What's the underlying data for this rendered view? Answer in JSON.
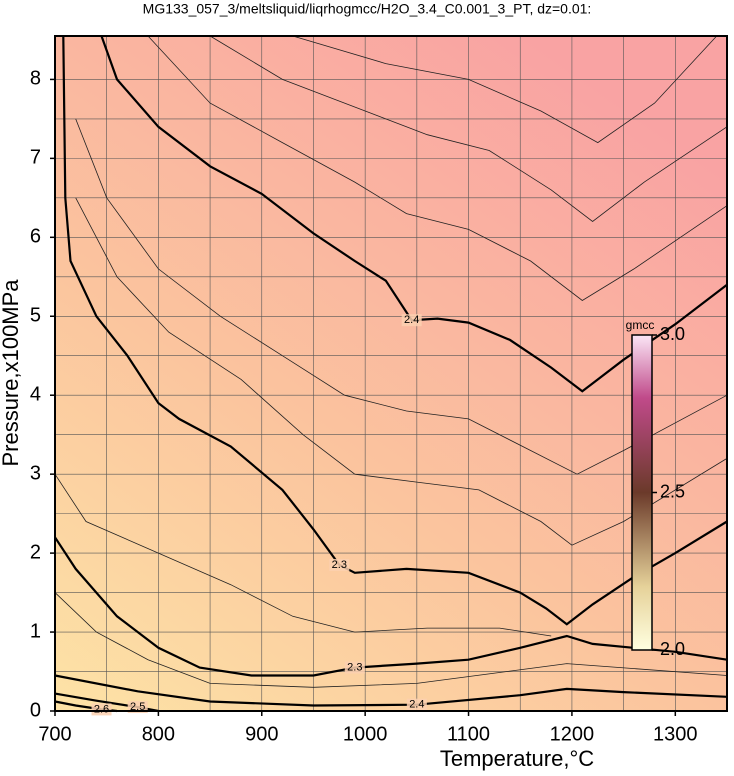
{
  "chart_data": {
    "type": "contour",
    "title": "MG133_057_3/meltsliquid/liqrhogmcc/H2O_3.4_C0.001_3_PT, dz=0.01:",
    "x_label": "Temperature,°C",
    "y_label": "Pressure,x100MPa",
    "xlim": [
      700,
      1350
    ],
    "ylim": [
      0,
      8.55
    ],
    "xticks": [
      700,
      800,
      900,
      1000,
      1100,
      1200,
      1300
    ],
    "yticks": [
      0,
      1,
      2,
      3,
      4,
      5,
      6,
      7,
      8
    ],
    "xgrid": [
      700,
      750,
      800,
      850,
      900,
      950,
      1000,
      1050,
      1100,
      1150,
      1200,
      1250,
      1300,
      1350
    ],
    "ygrid": [
      0,
      0.5,
      1,
      1.5,
      2,
      2.5,
      3,
      3.5,
      4,
      4.5,
      5,
      5.5,
      6,
      6.5,
      7,
      7.5,
      8
    ],
    "grid": true,
    "contours": [
      {
        "level": 2.4,
        "x": [
          745,
          760,
          800,
          850,
          900,
          950,
          990,
          1020,
          1045,
          1070,
          1100,
          1140,
          1180,
          1210,
          1250,
          1300,
          1350
        ],
        "y": [
          8.55,
          8.0,
          7.4,
          6.9,
          6.55,
          6.05,
          5.7,
          5.45,
          4.95,
          4.97,
          4.92,
          4.7,
          4.35,
          4.05,
          4.45,
          4.9,
          5.4
        ]
      },
      {
        "level": 2.3,
        "x": [
          708,
          710,
          715,
          740,
          770,
          800,
          820,
          870,
          920,
          950,
          975,
          990,
          1040,
          1100,
          1150,
          1175,
          1195,
          1220,
          1260,
          1300,
          1350
        ],
        "y": [
          8.55,
          6.5,
          5.7,
          5.0,
          4.5,
          3.9,
          3.7,
          3.35,
          2.8,
          2.3,
          1.85,
          1.75,
          1.8,
          1.75,
          1.5,
          1.3,
          1.1,
          1.35,
          1.7,
          2.0,
          2.4
        ]
      },
      {
        "level": 2.3,
        "x": [
          700,
          720,
          760,
          800,
          840,
          890,
          950,
          990,
          1050,
          1100,
          1150,
          1195,
          1220,
          1300,
          1350
        ],
        "y": [
          2.2,
          1.8,
          1.2,
          0.8,
          0.55,
          0.45,
          0.45,
          0.55,
          0.6,
          0.65,
          0.8,
          0.95,
          0.85,
          0.75,
          0.65
        ]
      },
      {
        "level": 2.4,
        "x": [
          700,
          780,
          850,
          950,
          1050,
          1150,
          1195,
          1250,
          1350
        ],
        "y": [
          0.45,
          0.25,
          0.12,
          0.07,
          0.08,
          0.2,
          0.28,
          0.24,
          0.18
        ]
      },
      {
        "level": 2.5,
        "x": [
          700,
          740,
          780,
          800
        ],
        "y": [
          0.22,
          0.13,
          0.05,
          0.0
        ]
      },
      {
        "level": 2.6,
        "x": [
          700,
          720,
          745,
          760
        ],
        "y": [
          0.12,
          0.07,
          0.02,
          0.0
        ]
      }
    ],
    "minor_contours": [
      {
        "x": [
          790,
          850,
          920,
          990,
          1040,
          1100,
          1160,
          1210,
          1260,
          1350
        ],
        "y": [
          8.55,
          7.7,
          7.2,
          6.7,
          6.3,
          6.1,
          5.7,
          5.2,
          5.6,
          6.4
        ]
      },
      {
        "x": [
          850,
          920,
          1000,
          1060,
          1120,
          1180,
          1220,
          1270,
          1350
        ],
        "y": [
          8.55,
          8.0,
          7.6,
          7.3,
          7.1,
          6.6,
          6.2,
          6.7,
          7.4
        ]
      },
      {
        "x": [
          930,
          1020,
          1100,
          1170,
          1225,
          1280,
          1340
        ],
        "y": [
          8.55,
          8.2,
          8.0,
          7.6,
          7.2,
          7.7,
          8.55
        ]
      },
      {
        "x": [
          720,
          750,
          800,
          860,
          920,
          980,
          1040,
          1100,
          1160,
          1205,
          1250,
          1350
        ],
        "y": [
          7.5,
          6.5,
          5.6,
          5.0,
          4.5,
          4.0,
          3.8,
          3.7,
          3.3,
          3.0,
          3.3,
          4.0
        ]
      },
      {
        "x": [
          720,
          760,
          810,
          880,
          940,
          990,
          1050,
          1110,
          1170,
          1200,
          1250,
          1350
        ],
        "y": [
          6.5,
          5.5,
          4.8,
          4.2,
          3.5,
          3.0,
          2.9,
          2.8,
          2.4,
          2.1,
          2.4,
          3.2
        ]
      },
      {
        "x": [
          700,
          740,
          790,
          850,
          950,
          1050,
          1195,
          1350
        ],
        "y": [
          1.5,
          1.0,
          0.65,
          0.35,
          0.3,
          0.35,
          0.6,
          0.45
        ]
      },
      {
        "x": [
          700,
          730,
          800,
          870,
          930,
          990,
          1060,
          1130,
          1180
        ],
        "y": [
          3.0,
          2.4,
          2.0,
          1.6,
          1.2,
          1.0,
          1.05,
          1.05,
          0.95
        ]
      }
    ],
    "colorbar": {
      "label": "gmcc",
      "lim": [
        2.0,
        3.0
      ],
      "ticks": [
        {
          "value": 2.0,
          "label": "2.0"
        },
        2.5,
        {
          "value": 3.0,
          "label": "3.0"
        }
      ]
    }
  }
}
